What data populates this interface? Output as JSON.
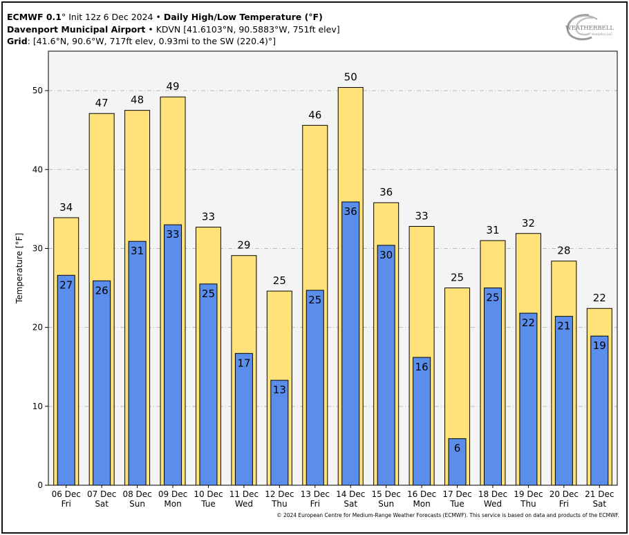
{
  "header": {
    "model": "ECMWF 0.1",
    "model_deg": "°",
    "init": " Init 12z 6 Dec 2024",
    "bullet": " • ",
    "product": "Daily High/Low Temperature (°F)",
    "station_name": "Davenport Municipal Airport",
    "station_info": "KDVN [41.6103°N, 90.5883°W, 751ft elev]",
    "grid_label": "Grid",
    "grid_info": ": [41.6°N, 90.6°W, 717ft elev, 0.93mi to the SW (220.4)°]"
  },
  "logo": {
    "text": "WEATHERBELL",
    "sub": "Analytics LLC",
    "icon": "weatherbell-swirl-logo"
  },
  "copyright": "© 2024 European Centre for Medium-Range Weather Forecasts (ECMWF). This service is based on data and products of the ECMWF.",
  "colors": {
    "high": "#FFE27A",
    "low": "#5B8DEB",
    "plot_bg": "#F4F4F4",
    "grid": "#BBBBBB"
  },
  "chart_data": {
    "type": "bar",
    "ylabel": "Temperature [°F]",
    "ylim": [
      0,
      55
    ],
    "yticks": [
      0,
      10,
      20,
      30,
      40,
      50
    ],
    "grid": true,
    "categories": [
      "06 Dec",
      "07 Dec",
      "08 Dec",
      "09 Dec",
      "10 Dec",
      "11 Dec",
      "12 Dec",
      "13 Dec",
      "14 Dec",
      "15 Dec",
      "16 Dec",
      "17 Dec",
      "18 Dec",
      "19 Dec",
      "20 Dec",
      "21 Dec"
    ],
    "weekdays": [
      "Fri",
      "Sat",
      "Sun",
      "Mon",
      "Tue",
      "Wed",
      "Thu",
      "Fri",
      "Sat",
      "Sun",
      "Mon",
      "Tue",
      "Wed",
      "Thu",
      "Fri",
      "Sat"
    ],
    "series": [
      {
        "values": [
          34,
          47,
          48,
          49,
          33,
          29,
          25,
          46,
          50,
          36,
          33,
          25,
          31,
          32,
          28,
          22
        ],
        "plot_values": [
          33.9,
          47.1,
          47.5,
          49.2,
          32.7,
          29.1,
          24.6,
          45.6,
          50.4,
          35.8,
          32.8,
          25.0,
          31.0,
          31.9,
          28.4,
          22.4
        ]
      },
      {
        "values": [
          27,
          26,
          31,
          33,
          25,
          17,
          13,
          25,
          36,
          30,
          16,
          6,
          25,
          22,
          21,
          19
        ],
        "plot_values": [
          26.6,
          25.9,
          30.9,
          33.0,
          25.5,
          16.7,
          13.3,
          24.7,
          35.9,
          30.4,
          16.2,
          5.9,
          25.0,
          21.8,
          21.4,
          18.9
        ]
      }
    ]
  }
}
